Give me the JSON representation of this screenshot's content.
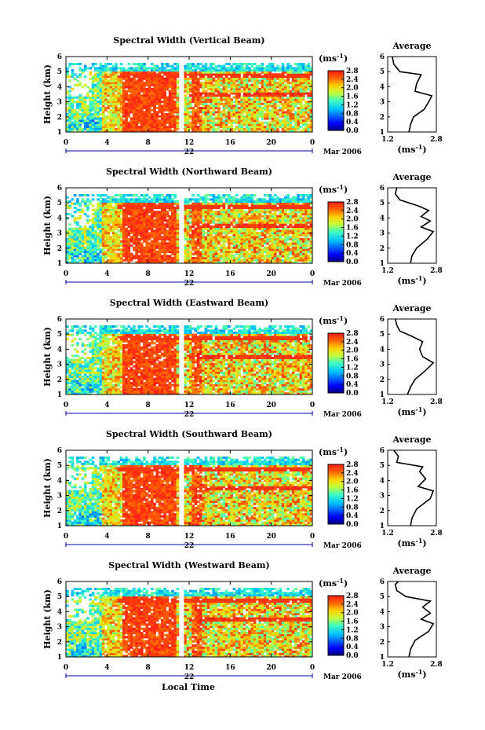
{
  "figure": {
    "x_axis_label": "Local Time",
    "date_label": "22",
    "month_label": "Mar 2006",
    "colorbar_unit": "(ms",
    "unit_exponent": "-1",
    "average_title": "Average"
  },
  "chart_data": [
    {
      "type": "heatmap",
      "title": "Spectral Width (Vertical Beam)",
      "ylabel": "Height (km)",
      "xlabel": "Local Time",
      "xlim": [
        0,
        24
      ],
      "x_ticks": [
        "0",
        "4",
        "8",
        "12",
        "16",
        "20",
        "0"
      ],
      "ylim": [
        1,
        6
      ],
      "y_ticks": [
        "1",
        "2",
        "3",
        "4",
        "5",
        "6"
      ],
      "colorbar_ticks": [
        "0.0",
        "0.4",
        "0.8",
        "1.2",
        "1.6",
        "2.0",
        "2.4",
        "2.8"
      ],
      "colorbar_range": [
        0,
        2.8
      ],
      "average_profile": {
        "xlim": [
          1.2,
          2.8
        ],
        "x_ticks": [
          "1.2",
          "2.8"
        ],
        "points": [
          [
            1.9,
            1.0
          ],
          [
            1.95,
            1.5
          ],
          [
            2.05,
            2.0
          ],
          [
            2.4,
            2.5
          ],
          [
            2.55,
            3.0
          ],
          [
            2.65,
            3.4
          ],
          [
            2.1,
            3.7
          ],
          [
            2.15,
            4.2
          ],
          [
            2.3,
            4.8
          ],
          [
            1.6,
            5.0
          ],
          [
            1.4,
            5.5
          ],
          [
            1.35,
            6.0
          ]
        ]
      }
    },
    {
      "type": "heatmap",
      "title": "Spectral Width (Northward Beam)",
      "ylabel": "Height (km)",
      "xlabel": "Local Time",
      "xlim": [
        0,
        24
      ],
      "x_ticks": [
        "0",
        "4",
        "8",
        "12",
        "16",
        "20",
        "0"
      ],
      "ylim": [
        1,
        6
      ],
      "y_ticks": [
        "1",
        "2",
        "3",
        "4",
        "5",
        "6"
      ],
      "colorbar_ticks": [
        "0.0",
        "0.4",
        "0.8",
        "1.2",
        "1.6",
        "2.0",
        "2.4",
        "2.8"
      ],
      "colorbar_range": [
        0,
        2.8
      ],
      "average_profile": {
        "xlim": [
          1.2,
          2.8
        ],
        "x_ticks": [
          "1.2",
          "2.8"
        ],
        "points": [
          [
            1.95,
            1.0
          ],
          [
            2.0,
            1.5
          ],
          [
            2.15,
            2.0
          ],
          [
            2.5,
            2.6
          ],
          [
            2.7,
            3.1
          ],
          [
            2.3,
            3.4
          ],
          [
            2.6,
            3.8
          ],
          [
            2.3,
            4.1
          ],
          [
            2.55,
            4.5
          ],
          [
            2.2,
            4.8
          ],
          [
            1.6,
            5.2
          ],
          [
            1.45,
            5.6
          ],
          [
            1.5,
            6.0
          ]
        ]
      }
    },
    {
      "type": "heatmap",
      "title": "Spectral Width (Eastward Beam)",
      "ylabel": "Height (km)",
      "xlabel": "Local Time",
      "xlim": [
        0,
        24
      ],
      "x_ticks": [
        "0",
        "4",
        "8",
        "12",
        "16",
        "20",
        "0"
      ],
      "ylim": [
        1,
        6
      ],
      "y_ticks": [
        "1",
        "2",
        "3",
        "4",
        "5",
        "6"
      ],
      "colorbar_ticks": [
        "0.0",
        "0.4",
        "0.8",
        "1.2",
        "1.6",
        "2.0",
        "2.4",
        "2.8"
      ],
      "colorbar_range": [
        0,
        2.8
      ],
      "average_profile": {
        "xlim": [
          1.2,
          2.8
        ],
        "x_ticks": [
          "1.2",
          "2.8"
        ],
        "points": [
          [
            1.85,
            1.0
          ],
          [
            1.95,
            1.5
          ],
          [
            2.1,
            2.0
          ],
          [
            2.45,
            2.6
          ],
          [
            2.7,
            3.1
          ],
          [
            2.35,
            3.5
          ],
          [
            2.25,
            4.0
          ],
          [
            2.35,
            4.5
          ],
          [
            1.95,
            4.9
          ],
          [
            1.6,
            5.2
          ],
          [
            1.5,
            5.6
          ],
          [
            1.45,
            6.0
          ]
        ]
      }
    },
    {
      "type": "heatmap",
      "title": "Spectral Width (Southward Beam)",
      "ylabel": "Height (km)",
      "xlabel": "Local Time",
      "xlim": [
        0,
        24
      ],
      "x_ticks": [
        "0",
        "4",
        "8",
        "12",
        "16",
        "20",
        "0"
      ],
      "ylim": [
        1,
        6
      ],
      "y_ticks": [
        "1",
        "2",
        "3",
        "4",
        "5",
        "6"
      ],
      "colorbar_ticks": [
        "0.0",
        "0.4",
        "0.8",
        "1.2",
        "1.6",
        "2.0",
        "2.4",
        "2.8"
      ],
      "colorbar_range": [
        0,
        2.8
      ],
      "average_profile": {
        "xlim": [
          1.2,
          2.8
        ],
        "x_ticks": [
          "1.2",
          "2.8"
        ],
        "points": [
          [
            1.95,
            1.0
          ],
          [
            2.0,
            1.5
          ],
          [
            2.15,
            2.1
          ],
          [
            2.6,
            2.8
          ],
          [
            2.7,
            3.3
          ],
          [
            2.2,
            3.6
          ],
          [
            2.45,
            4.1
          ],
          [
            2.25,
            4.6
          ],
          [
            2.35,
            4.9
          ],
          [
            1.5,
            5.2
          ],
          [
            1.55,
            5.6
          ],
          [
            1.4,
            6.0
          ]
        ]
      }
    },
    {
      "type": "heatmap",
      "title": "Spectral Width (Westward Beam)",
      "ylabel": "Height (km)",
      "xlabel": "Local Time",
      "xlim": [
        0,
        24
      ],
      "x_ticks": [
        "0",
        "4",
        "8",
        "12",
        "16",
        "20",
        "0"
      ],
      "ylim": [
        1,
        6
      ],
      "y_ticks": [
        "1",
        "2",
        "3",
        "4",
        "5",
        "6"
      ],
      "colorbar_ticks": [
        "0.0",
        "0.4",
        "0.8",
        "1.2",
        "1.6",
        "2.0",
        "2.4",
        "2.8"
      ],
      "colorbar_range": [
        0,
        2.8
      ],
      "average_profile": {
        "xlim": [
          1.2,
          2.8
        ],
        "x_ticks": [
          "1.2",
          "2.8"
        ],
        "points": [
          [
            1.9,
            1.0
          ],
          [
            1.95,
            1.5
          ],
          [
            2.1,
            2.1
          ],
          [
            2.55,
            2.7
          ],
          [
            2.7,
            3.2
          ],
          [
            2.3,
            3.5
          ],
          [
            2.6,
            3.9
          ],
          [
            2.35,
            4.3
          ],
          [
            2.6,
            4.7
          ],
          [
            1.8,
            5.0
          ],
          [
            1.5,
            5.4
          ],
          [
            1.45,
            5.8
          ],
          [
            1.55,
            6.0
          ]
        ]
      }
    }
  ]
}
